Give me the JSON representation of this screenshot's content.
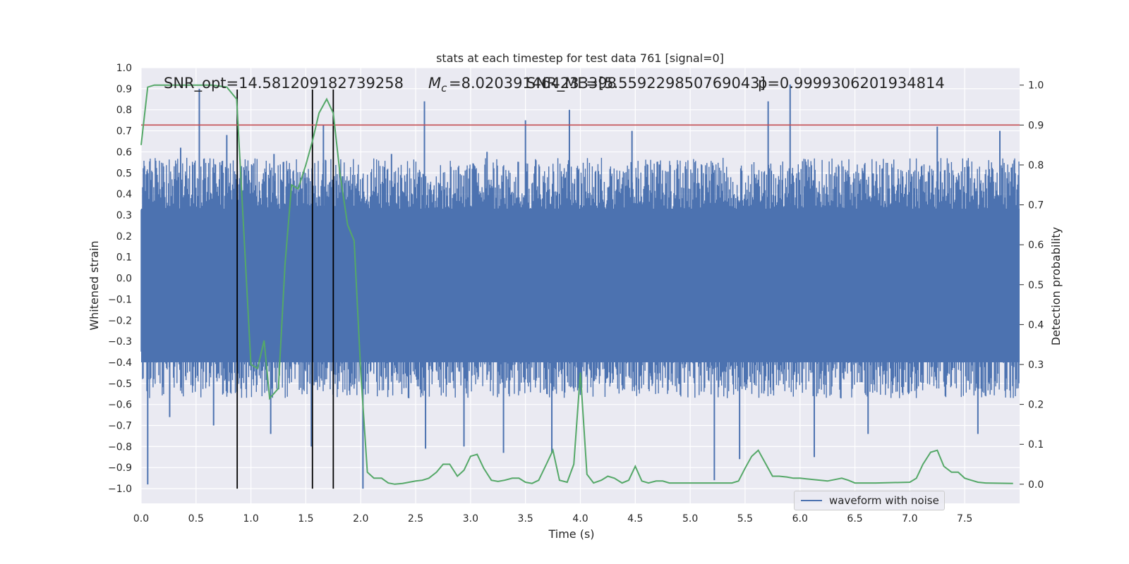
{
  "chart_data": {
    "type": "line",
    "title": "stats at each timestep for test data 761 [signal=0]",
    "xlabel": "Time (s)",
    "ylabel": "Whitened strain",
    "y2label": "Detection probability",
    "xlim": [
      0.0,
      8.0
    ],
    "ylim": [
      -1.07,
      1.0
    ],
    "y2lim": [
      -0.048,
      1.0437
    ],
    "x_ticks": [
      "0.0",
      "0.5",
      "1.0",
      "1.5",
      "2.0",
      "2.5",
      "3.0",
      "3.5",
      "4.0",
      "4.5",
      "5.0",
      "5.5",
      "6.0",
      "6.5",
      "7.0",
      "7.5"
    ],
    "y_ticks": [
      "1.0",
      "0.9",
      "0.8",
      "0.7",
      "0.6",
      "0.5",
      "0.4",
      "0.3",
      "0.2",
      "0.1",
      "0.0",
      "−0.1",
      "−0.2",
      "−0.3",
      "−0.4",
      "−0.5",
      "−0.6",
      "−0.7",
      "−0.8",
      "−0.9",
      "−1.0"
    ],
    "y2_ticks": [
      "1.0",
      "0.9",
      "0.8",
      "0.7",
      "0.6",
      "0.5",
      "0.4",
      "0.3",
      "0.2",
      "0.1",
      "0.0"
    ],
    "annotations": {
      "snr_opt": "SNR_opt=14.581209182739258",
      "mc": "=8.020391464233398",
      "snr_mf": "SNR_MF=[5.559229850769043]",
      "p": "p=0.9999306201934814"
    },
    "grid": true,
    "legend": {
      "position": "lower-right",
      "entries": [
        "waveform with noise"
      ]
    },
    "threshold_line": {
      "y2": 0.9,
      "color": "#c44e52"
    },
    "vertical_lines_x": [
      0.875,
      1.56,
      1.75
    ],
    "series": [
      {
        "name": "waveform with noise",
        "axis": "left",
        "color": "#4c72b0",
        "envelope": {
          "x_start": 0.0,
          "x_end": 8.0,
          "typical_amplitude": 0.45
        },
        "spikes": [
          {
            "x": 0.06,
            "y": -0.98
          },
          {
            "x": 0.26,
            "y": -0.66
          },
          {
            "x": 0.36,
            "y": 0.62
          },
          {
            "x": 0.53,
            "y": 0.9
          },
          {
            "x": 0.66,
            "y": -0.7
          },
          {
            "x": 0.78,
            "y": 0.68
          },
          {
            "x": 1.18,
            "y": -0.74
          },
          {
            "x": 1.21,
            "y": 0.59
          },
          {
            "x": 1.55,
            "y": -0.8
          },
          {
            "x": 1.66,
            "y": 0.73
          },
          {
            "x": 2.02,
            "y": -1.0
          },
          {
            "x": 2.28,
            "y": 0.59
          },
          {
            "x": 2.58,
            "y": 0.84
          },
          {
            "x": 2.59,
            "y": -0.81
          },
          {
            "x": 2.94,
            "y": -0.8
          },
          {
            "x": 3.15,
            "y": 0.6
          },
          {
            "x": 3.3,
            "y": -0.83
          },
          {
            "x": 3.5,
            "y": 0.75
          },
          {
            "x": 3.74,
            "y": -0.83
          },
          {
            "x": 3.9,
            "y": 0.8
          },
          {
            "x": 4.14,
            "y": -0.46
          },
          {
            "x": 4.47,
            "y": 0.7
          },
          {
            "x": 5.22,
            "y": -0.96
          },
          {
            "x": 5.45,
            "y": -0.86
          },
          {
            "x": 5.71,
            "y": 0.84
          },
          {
            "x": 5.91,
            "y": 0.92
          },
          {
            "x": 6.13,
            "y": -0.85
          },
          {
            "x": 6.62,
            "y": -0.74
          },
          {
            "x": 7.25,
            "y": 0.72
          },
          {
            "x": 7.62,
            "y": -0.74
          },
          {
            "x": 7.82,
            "y": 0.7
          }
        ]
      },
      {
        "name": "",
        "axis": "right",
        "color": "#55a868",
        "x": [
          0.0,
          0.06,
          0.12,
          0.2,
          0.35,
          0.5,
          0.65,
          0.78,
          0.87,
          0.93,
          1.0,
          1.06,
          1.12,
          1.17,
          1.25,
          1.31,
          1.37,
          1.43,
          1.5,
          1.56,
          1.62,
          1.69,
          1.75,
          1.81,
          1.88,
          1.94,
          2.0,
          2.06,
          2.12,
          2.19,
          2.25,
          2.31,
          2.38,
          2.44,
          2.5,
          2.56,
          2.62,
          2.69,
          2.75,
          2.81,
          2.88,
          2.94,
          3.0,
          3.06,
          3.12,
          3.19,
          3.25,
          3.31,
          3.38,
          3.44,
          3.5,
          3.56,
          3.62,
          3.69,
          3.75,
          3.81,
          3.88,
          3.94,
          4.0,
          4.06,
          4.12,
          4.19,
          4.25,
          4.31,
          4.38,
          4.44,
          4.5,
          4.56,
          4.62,
          4.69,
          4.75,
          4.81,
          4.88,
          4.94,
          5.0,
          5.19,
          5.38,
          5.44,
          5.5,
          5.56,
          5.62,
          5.69,
          5.75,
          5.81,
          5.88,
          5.94,
          6.0,
          6.25,
          6.38,
          6.44,
          6.5,
          6.69,
          7.0,
          7.06,
          7.12,
          7.19,
          7.25,
          7.31,
          7.38,
          7.44,
          7.5,
          7.56,
          7.62,
          7.69,
          7.94
        ],
        "y": [
          0.85,
          0.995,
          1.0,
          1.0,
          1.0,
          1.0,
          1.0,
          0.995,
          0.965,
          0.66,
          0.3,
          0.29,
          0.36,
          0.215,
          0.24,
          0.55,
          0.75,
          0.74,
          0.8,
          0.86,
          0.93,
          0.965,
          0.93,
          0.78,
          0.65,
          0.61,
          0.28,
          0.03,
          0.015,
          0.015,
          0.003,
          0.0,
          0.002,
          0.005,
          0.008,
          0.01,
          0.015,
          0.03,
          0.05,
          0.05,
          0.02,
          0.035,
          0.07,
          0.075,
          0.04,
          0.01,
          0.007,
          0.01,
          0.015,
          0.015,
          0.005,
          0.002,
          0.01,
          0.05,
          0.085,
          0.01,
          0.005,
          0.05,
          0.28,
          0.025,
          0.003,
          0.01,
          0.02,
          0.015,
          0.003,
          0.01,
          0.045,
          0.008,
          0.003,
          0.008,
          0.008,
          0.003,
          0.003,
          0.003,
          0.003,
          0.003,
          0.003,
          0.008,
          0.04,
          0.07,
          0.085,
          0.05,
          0.02,
          0.02,
          0.018,
          0.015,
          0.015,
          0.008,
          0.015,
          0.01,
          0.003,
          0.003,
          0.005,
          0.015,
          0.05,
          0.08,
          0.085,
          0.045,
          0.03,
          0.03,
          0.015,
          0.01,
          0.005,
          0.003,
          0.002
        ]
      }
    ]
  }
}
